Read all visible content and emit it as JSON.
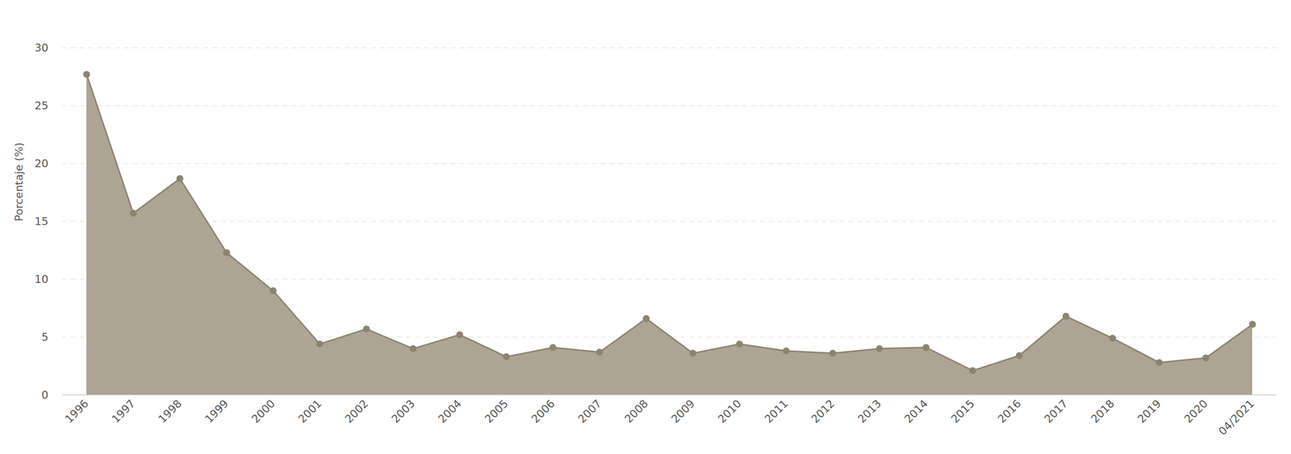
{
  "chart_data": {
    "type": "area",
    "y_label": "Porcentaje (%)",
    "categories": [
      "1996",
      "1997",
      "1998",
      "1999",
      "2000",
      "2001",
      "2002",
      "2003",
      "2004",
      "2005",
      "2006",
      "2007",
      "2008",
      "2009",
      "2010",
      "2011",
      "2012",
      "2013",
      "2014",
      "2015",
      "2016",
      "2017",
      "2018",
      "2019",
      "2020",
      "04/2021"
    ],
    "values": [
      27.7,
      15.7,
      18.7,
      12.3,
      9.0,
      4.4,
      5.7,
      4.0,
      5.2,
      3.3,
      4.1,
      3.7,
      6.6,
      3.6,
      4.4,
      3.8,
      3.6,
      4.0,
      4.1,
      2.1,
      3.4,
      6.8,
      4.9,
      2.8,
      3.2,
      6.1
    ],
    "color": "#ada493",
    "marker": "circle",
    "ylim": [
      0,
      30
    ],
    "yticks": [
      0,
      5,
      10,
      15,
      20,
      25,
      30
    ],
    "grid": true
  }
}
